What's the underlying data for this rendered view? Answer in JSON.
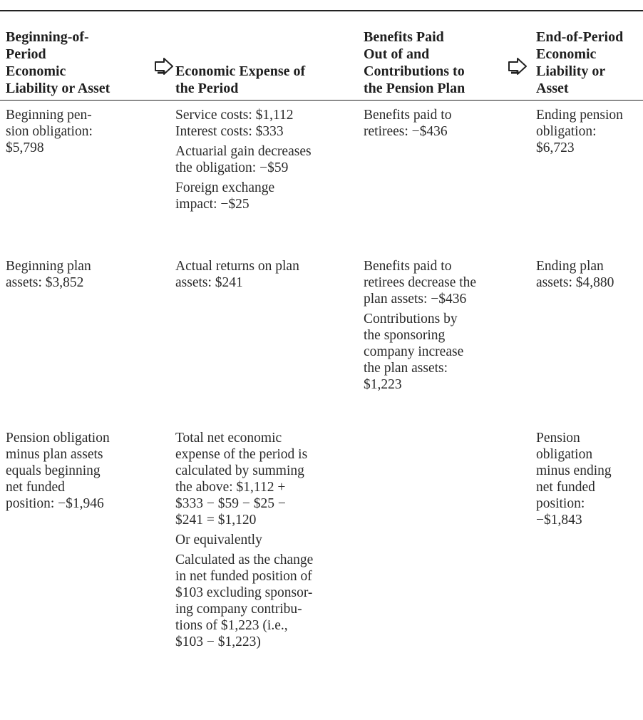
{
  "table": {
    "headers": [
      {
        "lines": [
          "Beginning-of-",
          "Period",
          "Economic",
          "Liability or Asset"
        ]
      },
      {
        "lines": [
          "Economic Expense of",
          "the Period"
        ]
      },
      {
        "lines": [
          "Benefits Paid",
          "Out of and",
          "Contributions to",
          "the Pension Plan"
        ]
      },
      {
        "lines": [
          "End-of-Period",
          "Economic",
          "Liability or",
          "Asset"
        ]
      }
    ],
    "arrow_icon": "right-arrow-outline-icon",
    "rows": [
      {
        "col1": [
          [
            "Beginning pen-",
            "sion obligation:",
            "$5,798"
          ]
        ],
        "col2": [
          [
            "Service costs: $1,112",
            "Interest costs: $333"
          ],
          [
            "Actuarial gain decreases",
            "the obligation: −$59"
          ],
          [
            "Foreign exchange",
            "impact: −$25"
          ]
        ],
        "col3": [
          [
            "Benefits paid to",
            "retirees: −$436"
          ]
        ],
        "col4": [
          [
            "Ending pension",
            "obligation:",
            "$6,723"
          ]
        ]
      },
      {
        "col1": [
          [
            "Beginning plan",
            "assets: $3,852"
          ]
        ],
        "col2": [
          [
            "Actual returns on plan",
            "assets: $241"
          ]
        ],
        "col3": [
          [
            "Benefits paid to",
            "retirees decrease the",
            "plan assets: −$436"
          ],
          [
            "Contributions by",
            "the sponsoring",
            "company increase",
            "the plan assets:",
            "$1,223"
          ]
        ],
        "col4": [
          [
            "Ending plan",
            "assets: $4,880"
          ]
        ]
      },
      {
        "col1": [
          [
            "Pension obligation",
            "minus plan assets",
            "equals beginning",
            "net funded",
            "position: −$1,946"
          ]
        ],
        "col2": [
          [
            "Total net economic",
            "expense of the period is",
            "calculated by summing",
            "the above: $1,112 +",
            "$333 − $59 − $25 −",
            "$241 = $1,120"
          ],
          [
            "Or equivalently"
          ],
          [
            "Calculated as the change",
            "in net funded position of",
            "$103 excluding sponsor-",
            "ing company contribu-",
            "tions of $1,223 (i.e.,",
            "$103 − $1,223)"
          ]
        ],
        "col3": [],
        "col4": [
          [
            "Pension",
            "obligation",
            "minus ending",
            "net funded",
            "position:",
            "−$1,843"
          ]
        ]
      }
    ]
  }
}
